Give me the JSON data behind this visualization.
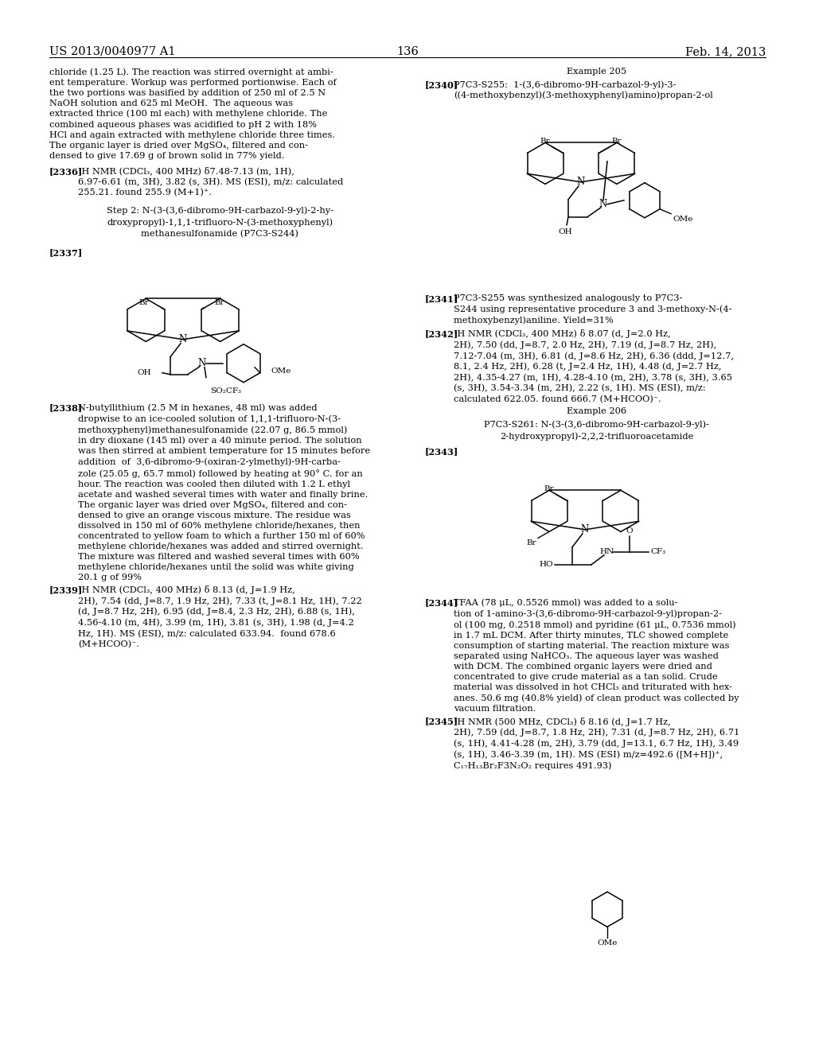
{
  "background": "#ffffff",
  "header_left": "US 2013/0040977 A1",
  "header_right": "Feb. 14, 2013",
  "page_number": "136"
}
